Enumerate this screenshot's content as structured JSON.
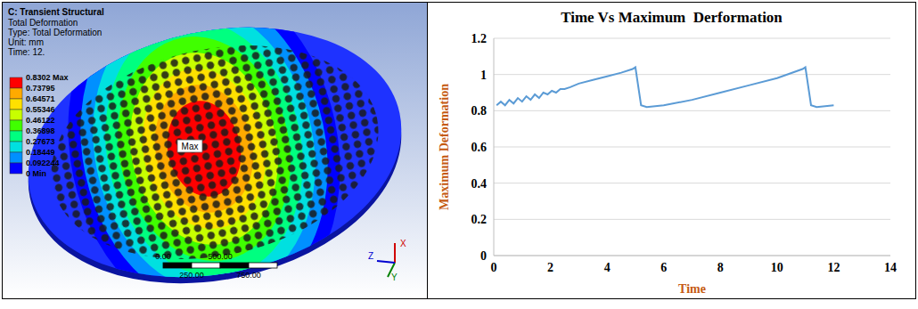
{
  "chart_data": [
    {
      "type": "contour",
      "title": "C: Transient Structural",
      "subtitle": [
        "Total Deformation",
        "Type: Total Deformation",
        "Unit: mm",
        "Time: 12."
      ],
      "colorbar": {
        "ticks": [
          {
            "value": 0.8302,
            "label": "0.8302 Max"
          },
          0.73795,
          0.64571,
          0.55346,
          0.46122,
          0.36898,
          0.27673,
          0.18449,
          0.092244,
          {
            "value": 0,
            "label": "0 Min"
          }
        ],
        "colors": [
          "#ff0000",
          "#ffaa00",
          "#ffe000",
          "#c8ff00",
          "#40ff00",
          "#00ff80",
          "#00e0e0",
          "#0090ff",
          "#0000ff"
        ]
      },
      "annotations": [
        "Max"
      ],
      "scale_bar": {
        "lim": [
          0,
          1000
        ],
        "ticks": [
          {
            "value": 0,
            "label": "0.00"
          },
          {
            "value": 250,
            "label": "250.00"
          },
          {
            "value": 500,
            "label": "500.00"
          },
          {
            "value": 750,
            "label": "750.00"
          }
        ]
      },
      "axis_triad": [
        "X",
        "Y",
        "Z"
      ]
    },
    {
      "type": "line",
      "title": "Time Vs Maximum  Derformation",
      "x_label": "Time",
      "y_label": "Maximum Deformation",
      "x": [
        0.1,
        0.25,
        0.4,
        0.55,
        0.7,
        0.85,
        1.0,
        1.15,
        1.3,
        1.45,
        1.6,
        1.75,
        1.9,
        2.05,
        2.2,
        2.35,
        2.5,
        2.7,
        3.0,
        3.5,
        4.0,
        4.5,
        4.9,
        5.0,
        5.2,
        5.4,
        6.0,
        7.0,
        8.0,
        9.0,
        10.0,
        10.9,
        11.0,
        11.2,
        11.4,
        12.0
      ],
      "values": [
        0.83,
        0.85,
        0.83,
        0.86,
        0.84,
        0.87,
        0.85,
        0.88,
        0.86,
        0.89,
        0.87,
        0.9,
        0.89,
        0.91,
        0.9,
        0.92,
        0.92,
        0.93,
        0.95,
        0.97,
        0.99,
        1.01,
        1.03,
        1.04,
        0.83,
        0.82,
        0.83,
        0.86,
        0.9,
        0.94,
        0.98,
        1.03,
        1.04,
        0.83,
        0.82,
        0.83
      ],
      "color": "#5b9bd5",
      "xlim": [
        0,
        14
      ],
      "xticks": [
        0,
        2,
        4,
        6,
        8,
        10,
        12,
        14
      ],
      "ylim": [
        0,
        1.2
      ],
      "yticks": [
        0,
        0.2,
        0.4,
        0.6,
        0.8,
        1,
        1.2
      ],
      "grid": true
    }
  ]
}
